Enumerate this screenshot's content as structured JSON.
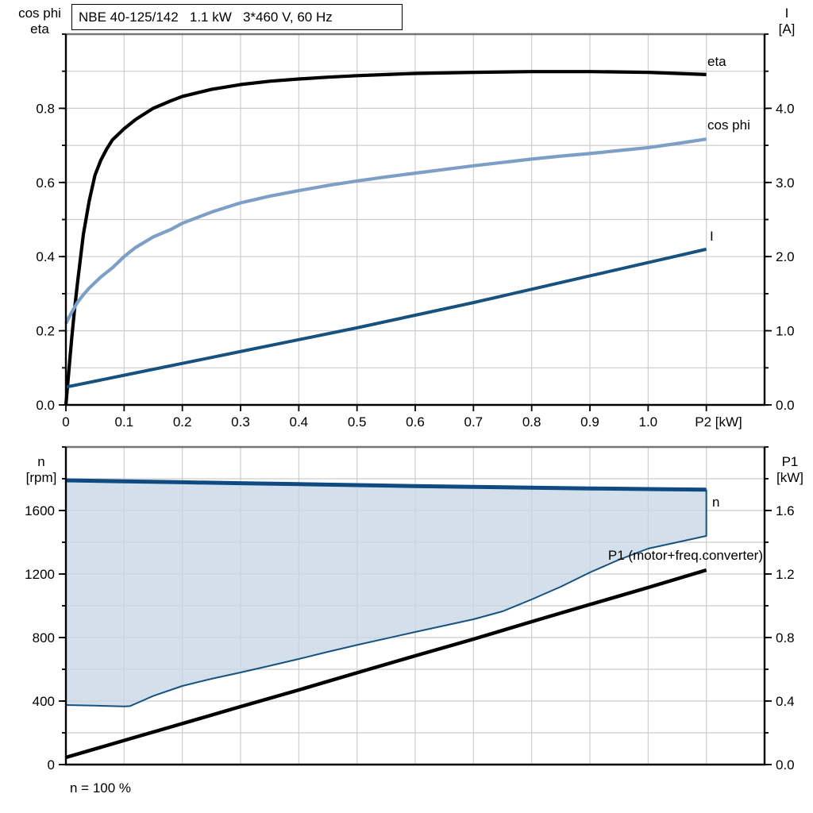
{
  "header": {
    "title_box": "NBE 40-125/142   1.1 kW   3*460 V, 60 Hz"
  },
  "colors": {
    "eta": "#000000",
    "cos_phi": "#7E9FC5",
    "current": "#17517E",
    "speed": "#0F4B82",
    "p1": "#000000",
    "fill": "#C7D6E6",
    "grid": "#CDCDCD",
    "axis": "#000000",
    "panel_border": "#757575",
    "text": "#000000"
  },
  "chart_data": [
    {
      "type": "line",
      "panel": "top",
      "x_axis": {
        "label": "P2 [kW]",
        "min": 0,
        "max": 1.2,
        "tick_step": 0.1,
        "tick_labels": [
          "0",
          "0.1",
          "0.2",
          "0.3",
          "0.4",
          "0.5",
          "0.6",
          "0.7",
          "0.8",
          "0.9",
          "1.0"
        ]
      },
      "y_left_axis": {
        "title_lines": [
          "cos phi",
          "eta"
        ],
        "min": 0,
        "max": 1.0,
        "minor_tick": 0.1,
        "labeled_ticks": [
          0.0,
          0.2,
          0.4,
          0.6,
          0.8
        ],
        "tick_labels": [
          "0.0",
          "0.2",
          "0.4",
          "0.6",
          "0.8"
        ],
        "grid_step": 0.1
      },
      "y_right_axis": {
        "title_lines": [
          "I",
          "[A]"
        ],
        "title_colors": [
          "#17517E",
          "#000000"
        ],
        "min": 0,
        "max": 5.0,
        "minor_tick": 0.5,
        "labeled_ticks": [
          0.0,
          1.0,
          2.0,
          3.0,
          4.0
        ],
        "tick_labels": [
          "0.0",
          "1.0",
          "2.0",
          "3.0",
          "4.0"
        ]
      },
      "series": [
        {
          "name": "eta",
          "label": "eta",
          "axis": "left",
          "color": "#000000",
          "points": [
            [
              0,
              0
            ],
            [
              0.005,
              0.09
            ],
            [
              0.01,
              0.18
            ],
            [
              0.015,
              0.26
            ],
            [
              0.02,
              0.33
            ],
            [
              0.03,
              0.46
            ],
            [
              0.04,
              0.55
            ],
            [
              0.05,
              0.62
            ],
            [
              0.06,
              0.66
            ],
            [
              0.07,
              0.69
            ],
            [
              0.08,
              0.715
            ],
            [
              0.09,
              0.73
            ],
            [
              0.1,
              0.745
            ],
            [
              0.12,
              0.77
            ],
            [
              0.15,
              0.8
            ],
            [
              0.18,
              0.82
            ],
            [
              0.2,
              0.832
            ],
            [
              0.25,
              0.851
            ],
            [
              0.3,
              0.864
            ],
            [
              0.35,
              0.873
            ],
            [
              0.4,
              0.879
            ],
            [
              0.45,
              0.884
            ],
            [
              0.5,
              0.888
            ],
            [
              0.55,
              0.891
            ],
            [
              0.6,
              0.894
            ],
            [
              0.7,
              0.897
            ],
            [
              0.8,
              0.899
            ],
            [
              0.9,
              0.899
            ],
            [
              1.0,
              0.897
            ],
            [
              1.05,
              0.894
            ],
            [
              1.1,
              0.891
            ]
          ]
        },
        {
          "name": "cos phi",
          "label": "cos phi",
          "axis": "left",
          "color": "#7E9FC5",
          "points": [
            [
              0,
              0.22
            ],
            [
              0.01,
              0.25
            ],
            [
              0.02,
              0.277
            ],
            [
              0.03,
              0.297
            ],
            [
              0.04,
              0.315
            ],
            [
              0.05,
              0.33
            ],
            [
              0.06,
              0.345
            ],
            [
              0.08,
              0.37
            ],
            [
              0.1,
              0.4
            ],
            [
              0.12,
              0.425
            ],
            [
              0.15,
              0.453
            ],
            [
              0.18,
              0.473
            ],
            [
              0.2,
              0.49
            ],
            [
              0.25,
              0.52
            ],
            [
              0.3,
              0.545
            ],
            [
              0.35,
              0.563
            ],
            [
              0.4,
              0.578
            ],
            [
              0.45,
              0.592
            ],
            [
              0.5,
              0.604
            ],
            [
              0.55,
              0.615
            ],
            [
              0.6,
              0.625
            ],
            [
              0.65,
              0.635
            ],
            [
              0.7,
              0.645
            ],
            [
              0.75,
              0.654
            ],
            [
              0.8,
              0.663
            ],
            [
              0.85,
              0.671
            ],
            [
              0.9,
              0.678
            ],
            [
              0.95,
              0.686
            ],
            [
              1.0,
              0.694
            ],
            [
              1.05,
              0.705
            ],
            [
              1.1,
              0.717
            ]
          ]
        },
        {
          "name": "I",
          "label": "I",
          "axis": "right",
          "color": "#17517E",
          "points": [
            [
              0,
              0.24
            ],
            [
              0.1,
              0.4
            ],
            [
              0.2,
              0.56
            ],
            [
              0.3,
              0.72
            ],
            [
              0.4,
              0.88
            ],
            [
              0.5,
              1.04
            ],
            [
              0.6,
              1.21
            ],
            [
              0.7,
              1.38
            ],
            [
              0.8,
              1.56
            ],
            [
              0.9,
              1.74
            ],
            [
              1.0,
              1.92
            ],
            [
              1.05,
              2.01
            ],
            [
              1.1,
              2.1
            ]
          ]
        }
      ]
    },
    {
      "type": "line",
      "panel": "bottom",
      "x_axis": {
        "label": "",
        "min": 0,
        "max": 1.2,
        "tick_step": 0.1,
        "tick_labels": []
      },
      "y_left_axis": {
        "title_lines": [
          "n",
          "[rpm]"
        ],
        "min": 0,
        "max": 2000,
        "minor_tick": 200,
        "labeled_ticks": [
          0,
          400,
          800,
          1200,
          1600
        ],
        "tick_labels": [
          "0",
          "400",
          "800",
          "1200",
          "1600"
        ],
        "grid_step": 200
      },
      "y_right_axis": {
        "title_lines": [
          "P1",
          "[kW]"
        ],
        "title_colors": [
          "#000000",
          "#000000"
        ],
        "min": 0,
        "max": 2.0,
        "minor_tick": 0.2,
        "labeled_ticks": [
          0.0,
          0.4,
          0.8,
          1.2,
          1.6
        ],
        "tick_labels": [
          "0.0",
          "0.4",
          "0.8",
          "1.2",
          "1.6"
        ]
      },
      "series": [
        {
          "name": "n",
          "label": "n",
          "axis": "left",
          "color": "#0F4B82",
          "points": [
            [
              0,
              1790
            ],
            [
              0.1,
              1784
            ],
            [
              0.2,
              1778
            ],
            [
              0.3,
              1772
            ],
            [
              0.4,
              1766
            ],
            [
              0.5,
              1760
            ],
            [
              0.6,
              1754
            ],
            [
              0.7,
              1749
            ],
            [
              0.8,
              1744
            ],
            [
              0.9,
              1739
            ],
            [
              1.0,
              1735
            ],
            [
              1.1,
              1731
            ]
          ]
        },
        {
          "name": "speed-range-lower",
          "label": "",
          "axis": "left",
          "color": "#17517E",
          "joins_series": "n",
          "points": [
            [
              0,
              375
            ],
            [
              0.05,
              371
            ],
            [
              0.1,
              366
            ],
            [
              0.11,
              368
            ],
            [
              0.13,
              400
            ],
            [
              0.15,
              432
            ],
            [
              0.2,
              495
            ],
            [
              0.25,
              540
            ],
            [
              0.3,
              580
            ],
            [
              0.35,
              622
            ],
            [
              0.4,
              665
            ],
            [
              0.45,
              710
            ],
            [
              0.5,
              753
            ],
            [
              0.55,
              794
            ],
            [
              0.6,
              835
            ],
            [
              0.65,
              875
            ],
            [
              0.7,
              915
            ],
            [
              0.75,
              965
            ],
            [
              0.8,
              1040
            ],
            [
              0.85,
              1120
            ],
            [
              0.9,
              1210
            ],
            [
              0.95,
              1290
            ],
            [
              1.0,
              1360
            ],
            [
              1.05,
              1400
            ],
            [
              1.1,
              1440
            ]
          ]
        },
        {
          "name": "P1",
          "label": "P1 (motor+freq.converter)",
          "axis": "right",
          "color": "#000000",
          "points": [
            [
              0,
              0.045
            ],
            [
              0.1,
              0.152
            ],
            [
              0.2,
              0.258
            ],
            [
              0.3,
              0.365
            ],
            [
              0.4,
              0.47
            ],
            [
              0.5,
              0.578
            ],
            [
              0.6,
              0.685
            ],
            [
              0.7,
              0.79
            ],
            [
              0.8,
              0.9
            ],
            [
              0.9,
              1.008
            ],
            [
              1.0,
              1.115
            ],
            [
              1.1,
              1.225
            ]
          ]
        }
      ],
      "fill_region": {
        "between": [
          "n",
          "speed-range-lower"
        ],
        "color": "#C7D6E6"
      },
      "annotation": "n = 100 %"
    }
  ]
}
